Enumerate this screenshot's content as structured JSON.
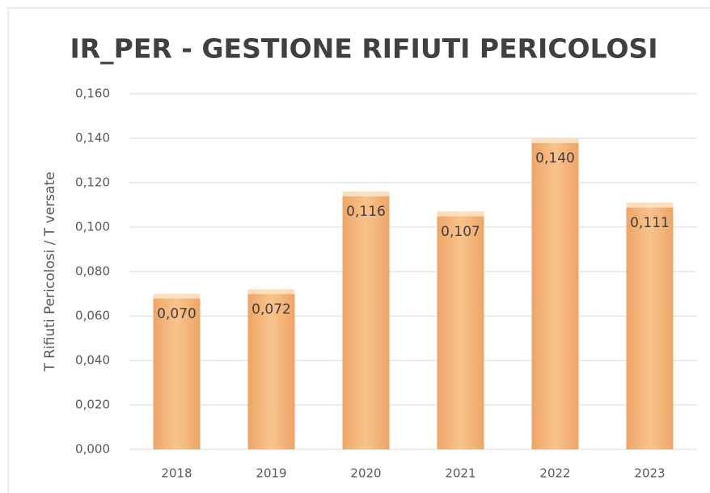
{
  "chart_data": {
    "type": "bar",
    "title": "IR_PER - GESTIONE RIFIUTI PERICOLOSI",
    "y_label": "T Rifiuti Pericolosi / T versate",
    "categories": [
      "2018",
      "2019",
      "2020",
      "2021",
      "2022",
      "2023"
    ],
    "values": [
      0.07,
      0.072,
      0.116,
      0.107,
      0.14,
      0.111
    ],
    "value_labels": [
      "0,070",
      "0,072",
      "0,116",
      "0,107",
      "0,140",
      "0,111"
    ],
    "color": "#f9c38c",
    "ylim": [
      0,
      0.16
    ],
    "yticks": [
      {
        "value": 0,
        "label": "0,000"
      },
      {
        "value": 0.02,
        "label": "0,020"
      },
      {
        "value": 0.04,
        "label": "0,040"
      },
      {
        "value": 0.06,
        "label": "0,060"
      },
      {
        "value": 0.08,
        "label": "0,080"
      },
      {
        "value": 0.1,
        "label": "0,100"
      },
      {
        "value": 0.12,
        "label": "0,120"
      },
      {
        "value": 0.14,
        "label": "0,140"
      },
      {
        "value": 0.16,
        "label": "0,160"
      }
    ],
    "grid": true
  }
}
